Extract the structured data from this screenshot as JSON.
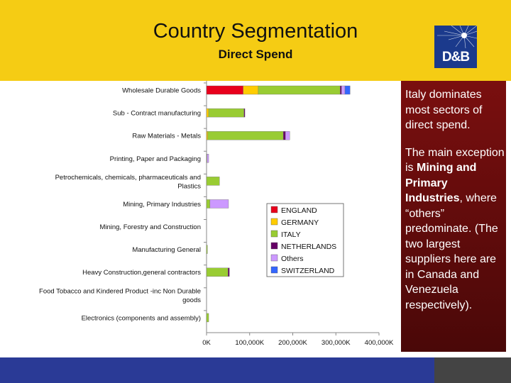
{
  "header": {
    "title": "Country Segmentation",
    "subtitle": "Direct Spend",
    "logo_text": "D&B"
  },
  "notes": {
    "paragraph_1": "Italy dominates most sectors of direct spend.",
    "p2_start": "The main exception  is ",
    "p2_bold": "Mining and Primary Industries",
    "p2_end": ", where “others” predominate. (The two largest suppliers here are in Canada and Venezuela respectively)."
  },
  "colors": {
    "header_bg": "#f5cc14",
    "notes_bg": "#7a0f0f",
    "footer_bg": "#2a3a96"
  },
  "chart_data": {
    "type": "bar",
    "orientation": "horizontal",
    "stacked": true,
    "categories": [
      "Wholesale Durable Goods",
      "Sub - Contract manufacturing",
      "Raw Materials - Metals",
      "Printing, Paper and Packaging",
      "Petrochemicals, chemicals, pharmaceuticals and Plastics",
      "Mining, Primary Industries",
      "Mining, Forestry and Construction",
      "Manufacturing General",
      "Heavy Construction,general contractors",
      "Food Tobacco and Kindered Product -inc Non Durable goods",
      "Electronics (components and assembly)"
    ],
    "category_lines": [
      [
        "Wholesale Durable Goods"
      ],
      [
        "Sub - Contract manufacturing"
      ],
      [
        "Raw Materials - Metals"
      ],
      [
        "Printing, Paper and Packaging"
      ],
      [
        "Petrochemicals, chemicals, pharmaceuticals and",
        "Plastics"
      ],
      [
        "Mining, Primary Industries"
      ],
      [
        "Mining, Forestry and Construction"
      ],
      [
        "Manufacturing General"
      ],
      [
        "Heavy Construction,general contractors"
      ],
      [
        "Food Tobacco and Kindered Product -inc Non Durable",
        "goods"
      ],
      [
        "Electronics (components and assembly)"
      ]
    ],
    "series": [
      {
        "name": "ENGLAND",
        "color": "#e8001c",
        "values": [
          85000,
          0,
          0,
          0,
          0,
          0,
          0,
          0,
          0,
          0,
          0
        ]
      },
      {
        "name": "GERMANY",
        "color": "#ffcc00",
        "values": [
          35000,
          5000,
          3000,
          0,
          0,
          0,
          0,
          0,
          0,
          0,
          0
        ]
      },
      {
        "name": "ITALY",
        "color": "#99cc33",
        "values": [
          190000,
          82000,
          175000,
          1000,
          30000,
          8000,
          0,
          2000,
          50000,
          0,
          5000
        ]
      },
      {
        "name": "NETHERLANDS",
        "color": "#660066",
        "values": [
          3000,
          2000,
          5000,
          0,
          0,
          0,
          0,
          0,
          3000,
          0,
          0
        ]
      },
      {
        "name": "Others",
        "color": "#cc99ff",
        "values": [
          8000,
          0,
          10000,
          4000,
          0,
          43000,
          0,
          0,
          0,
          0,
          0
        ]
      },
      {
        "name": "SWITZERLAND",
        "color": "#3366ff",
        "values": [
          12000,
          0,
          0,
          0,
          0,
          0,
          0,
          0,
          0,
          0,
          0
        ]
      }
    ],
    "x_ticks": [
      0,
      100000,
      200000,
      300000,
      400000
    ],
    "x_tick_labels": [
      "0K",
      "100,000K",
      "200,000K",
      "300,000K",
      "400,000K"
    ],
    "xlim": [
      0,
      400000
    ],
    "legend_position": "right-center",
    "grid": false
  }
}
